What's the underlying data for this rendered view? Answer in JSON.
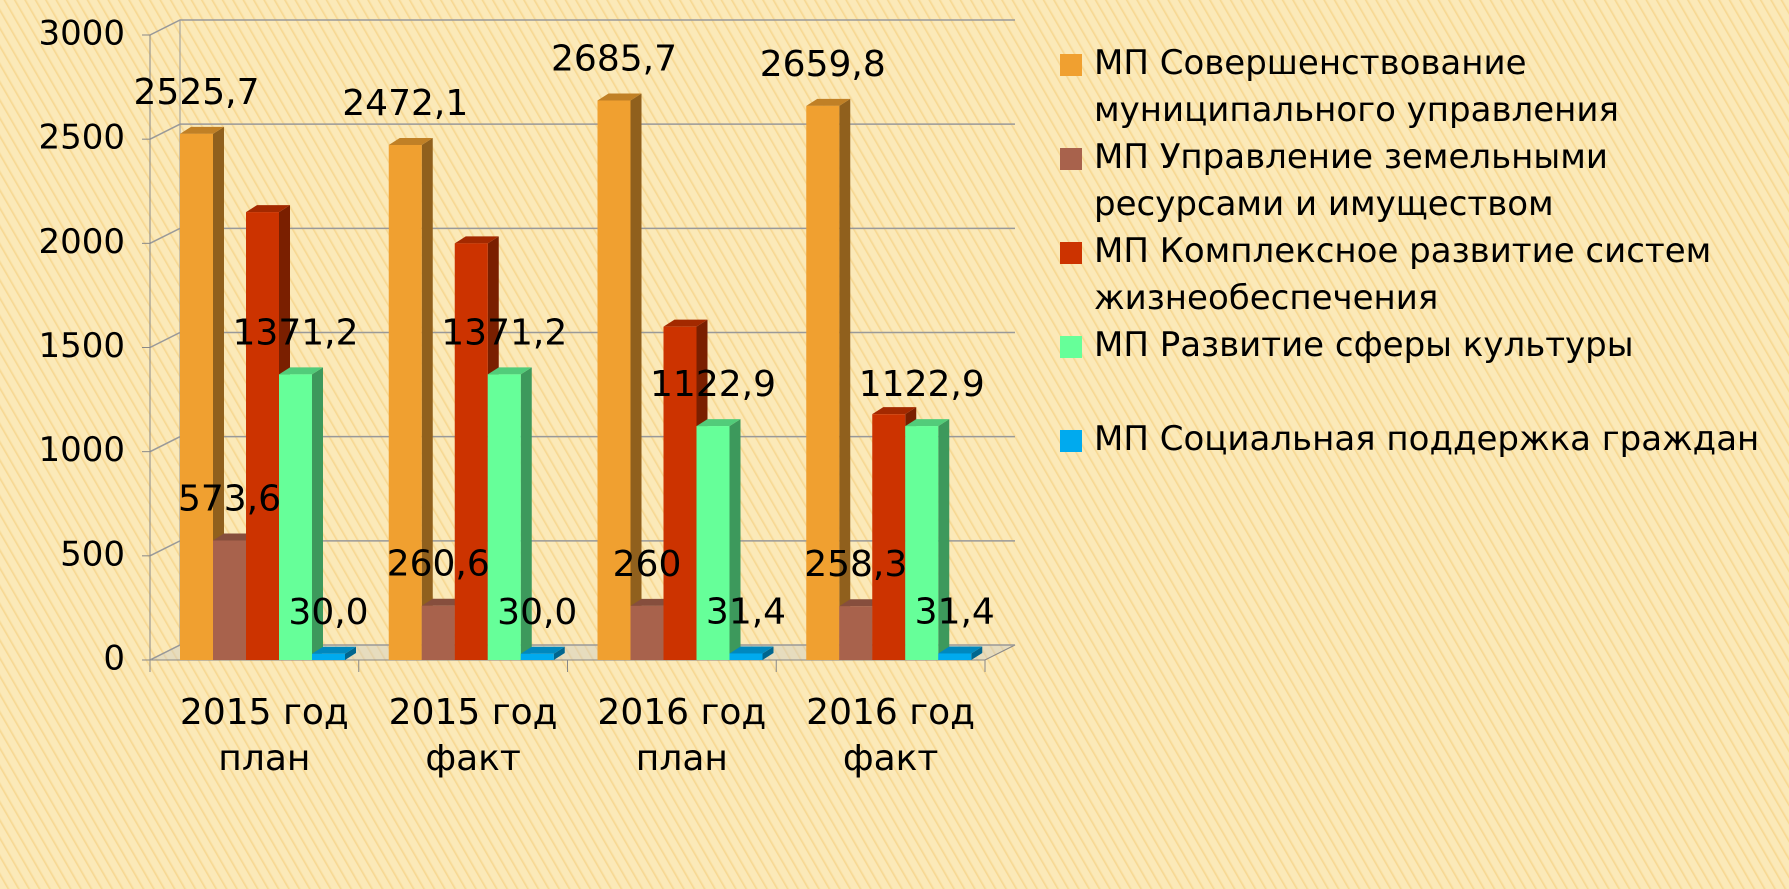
{
  "chart_data": {
    "type": "bar3d",
    "categories": [
      "2015 год план",
      "2015 год факт",
      "2016 год план",
      "2016 год факт"
    ],
    "series": [
      {
        "name": "МП Совершенствование муниципального управления",
        "color": "#f0a030",
        "values": [
          2525.7,
          2472.1,
          2685.7,
          2659.8
        ],
        "value_labels": [
          "2525,7",
          "2472,1",
          "2685,7",
          "2659,8"
        ]
      },
      {
        "name": "МП Управление земельными ресурсами и имуществом",
        "color": "#a8624c",
        "values": [
          573.6,
          260.6,
          260,
          258.3
        ],
        "value_labels": [
          "573,6",
          "260,6",
          "260",
          "258,3"
        ]
      },
      {
        "name": "МП Комплексное развитие систем жизнеобеспечения",
        "color": "#cc3300",
        "values": [
          2150,
          2000,
          1600,
          1180
        ]
      },
      {
        "name": "МП Развитие сферы культуры",
        "color": "#66ff99",
        "values": [
          1371.2,
          1371.2,
          1122.9,
          1122.9
        ],
        "value_labels": [
          "1371,2",
          "1371,2",
          "1122,9",
          "1122,9"
        ]
      },
      {
        "name": "МП Социальная поддержка граждан",
        "color": "#00aaee",
        "values": [
          30,
          30,
          31.4,
          31.4
        ],
        "value_labels": [
          "30,0",
          "30,0",
          "31,4",
          "31,4"
        ]
      }
    ],
    "ylim": [
      0,
      3000
    ],
    "yticks": [
      0,
      500,
      1000,
      1500,
      2000,
      2500,
      3000
    ],
    "grid": true
  }
}
